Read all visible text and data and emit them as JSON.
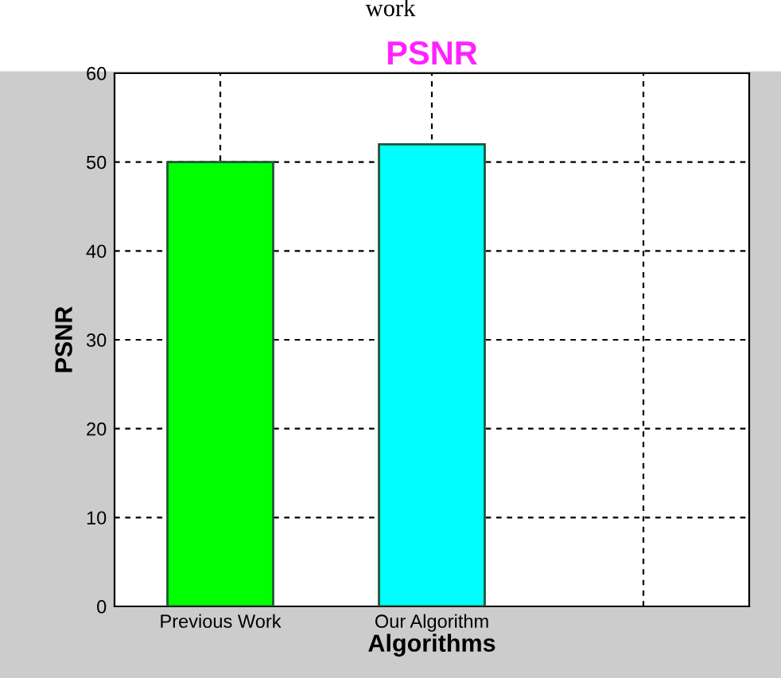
{
  "chart_data": {
    "type": "bar",
    "title": "PSNR",
    "xlabel": "Algorithms",
    "ylabel": "PSNR",
    "annotations": [
      "work"
    ],
    "categories": [
      "Previous Work",
      "Our Algorithm",
      null
    ],
    "values": [
      50,
      52,
      null
    ],
    "colors": [
      "#00ff00",
      "#00ffff",
      "#00ffff"
    ],
    "ylim": [
      0,
      60
    ],
    "yticks": [
      0,
      10,
      20,
      30,
      40,
      50,
      60
    ],
    "grid": true
  }
}
